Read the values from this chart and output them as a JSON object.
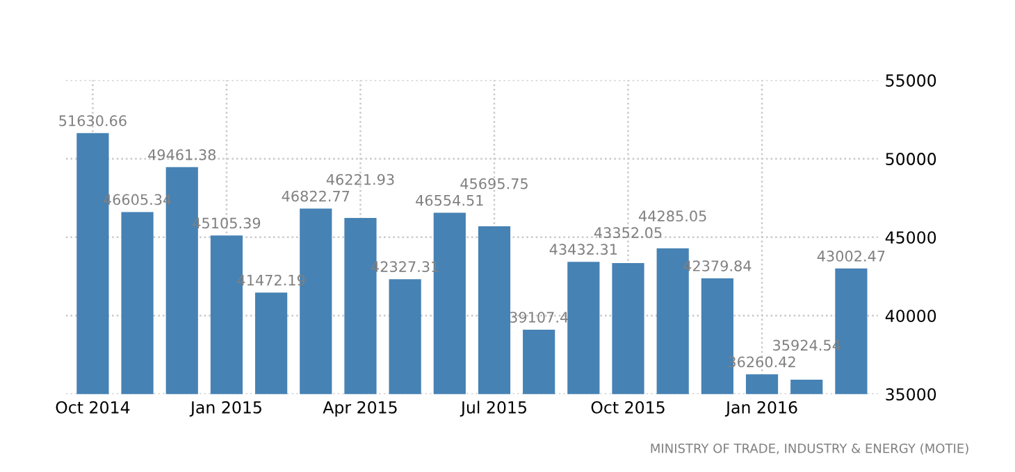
{
  "chart_data": {
    "type": "bar",
    "categories": [
      "Oct 2014",
      null,
      null,
      "Jan 2015",
      null,
      null,
      "Apr 2015",
      null,
      null,
      "Jul 2015",
      null,
      null,
      "Oct 2015",
      null,
      null,
      "Jan 2016",
      null,
      null
    ],
    "values": [
      51630.66,
      46605.34,
      49461.38,
      45105.39,
      41472.19,
      46822.77,
      46221.93,
      42327.31,
      46554.51,
      45695.75,
      39107.4,
      43432.31,
      43352.05,
      44285.05,
      42379.84,
      36260.42,
      35924.54,
      43002.47
    ],
    "color": "#4682b4",
    "ylim": [
      35000,
      55000
    ],
    "yticks": [
      35000,
      40000,
      45000,
      50000,
      55000
    ],
    "grid": true,
    "data_labels": true,
    "annotations": [
      "MINISTRY OF TRADE, INDUSTRY & ENERGY (MOTIE)"
    ]
  }
}
